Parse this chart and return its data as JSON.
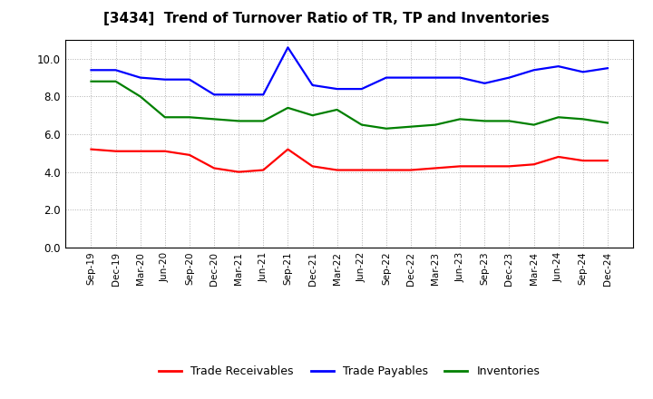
{
  "title": "[3434]  Trend of Turnover Ratio of TR, TP and Inventories",
  "x_labels": [
    "Sep-19",
    "Dec-19",
    "Mar-20",
    "Jun-20",
    "Sep-20",
    "Dec-20",
    "Mar-21",
    "Jun-21",
    "Sep-21",
    "Dec-21",
    "Mar-22",
    "Jun-22",
    "Sep-22",
    "Dec-22",
    "Mar-23",
    "Jun-23",
    "Sep-23",
    "Dec-23",
    "Mar-24",
    "Jun-24",
    "Sep-24",
    "Dec-24"
  ],
  "trade_receivables": [
    5.2,
    5.1,
    5.1,
    5.1,
    4.9,
    4.2,
    4.0,
    4.1,
    5.2,
    4.3,
    4.1,
    4.1,
    4.1,
    4.1,
    4.2,
    4.3,
    4.3,
    4.3,
    4.4,
    4.8,
    4.6,
    4.6
  ],
  "trade_payables": [
    9.4,
    9.4,
    9.0,
    8.9,
    8.9,
    8.1,
    8.1,
    8.1,
    10.6,
    8.6,
    8.4,
    8.4,
    9.0,
    9.0,
    9.0,
    9.0,
    8.7,
    9.0,
    9.4,
    9.6,
    9.3,
    9.5
  ],
  "inventories": [
    8.8,
    8.8,
    8.0,
    6.9,
    6.9,
    6.8,
    6.7,
    6.7,
    7.4,
    7.0,
    7.3,
    6.5,
    6.3,
    6.4,
    6.5,
    6.8,
    6.7,
    6.7,
    6.5,
    6.9,
    6.8,
    6.6
  ],
  "ylim": [
    0,
    11.0
  ],
  "yticks": [
    0.0,
    2.0,
    4.0,
    6.0,
    8.0,
    10.0
  ],
  "line_colors": {
    "trade_receivables": "#ff0000",
    "trade_payables": "#0000ff",
    "inventories": "#008000"
  },
  "legend_labels": [
    "Trade Receivables",
    "Trade Payables",
    "Inventories"
  ],
  "background_color": "#ffffff",
  "grid_color": "#b0b0b0",
  "line_width": 1.6
}
